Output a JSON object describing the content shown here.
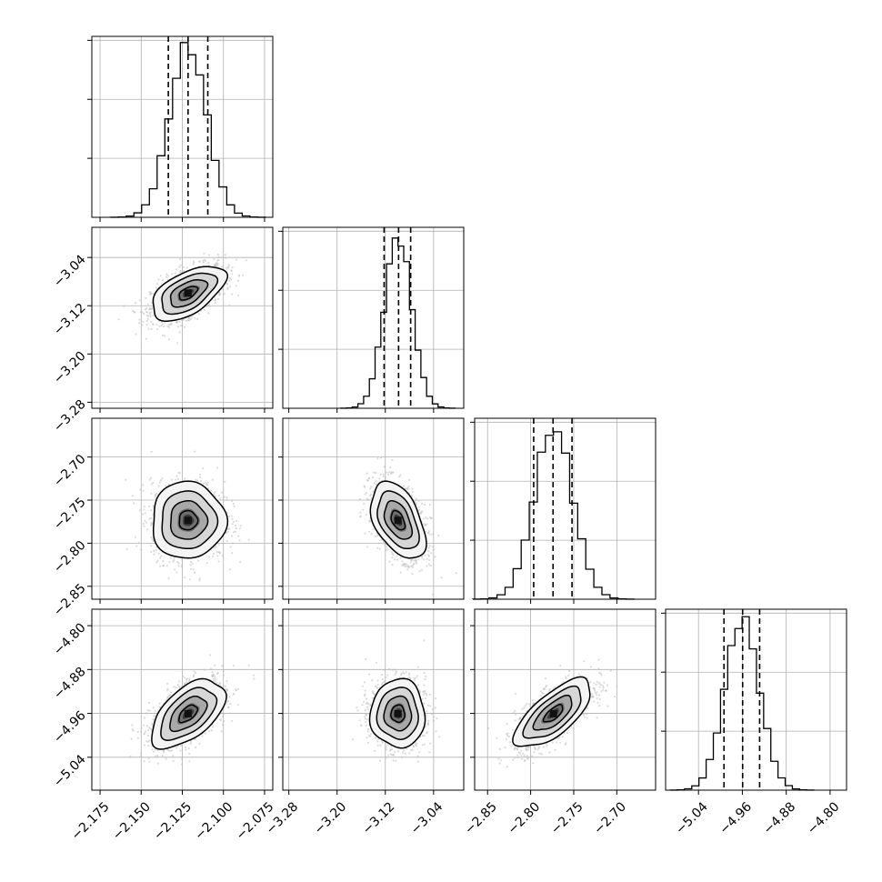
{
  "chart_data": {
    "type": "corner",
    "parameters": [
      {
        "range": [
          -2.18,
          -2.07
        ],
        "ticks": [
          {
            "value": -2.175,
            "label": "−2.175"
          },
          {
            "value": -2.15,
            "label": "−2.150"
          },
          {
            "value": -2.125,
            "label": "−2.125"
          },
          {
            "value": -2.1,
            "label": "−2.100"
          },
          {
            "value": -2.075,
            "label": "−2.075"
          }
        ],
        "quantiles": [
          -2.1335,
          -2.1215,
          -2.1095
        ],
        "mean": -2.1215,
        "sd": 0.0112,
        "hist_max": 0.138
      },
      {
        "range": [
          -3.29,
          -2.99
        ],
        "ticks": [
          {
            "value": -3.28,
            "label": "−3.28"
          },
          {
            "value": -3.2,
            "label": "−3.20"
          },
          {
            "value": -3.12,
            "label": "−3.12"
          },
          {
            "value": -3.04,
            "label": "−3.04"
          }
        ],
        "quantiles": [
          -3.122,
          -3.098,
          -3.078
        ],
        "mean": -3.099,
        "sd": 0.0226,
        "hist_max": 0.138
      },
      {
        "range": [
          -2.865,
          -2.655
        ],
        "ticks": [
          {
            "value": -2.85,
            "label": "−2.85"
          },
          {
            "value": -2.8,
            "label": "−2.80"
          },
          {
            "value": -2.75,
            "label": "−2.75"
          },
          {
            "value": -2.7,
            "label": "−2.70"
          }
        ],
        "quantiles": [
          -2.7965,
          -2.774,
          -2.752
        ],
        "mean": -2.7735,
        "sd": 0.0223,
        "hist_max": 0.138
      },
      {
        "range": [
          -5.1,
          -4.77
        ],
        "ticks": [
          {
            "value": -5.04,
            "label": "−5.04"
          },
          {
            "value": -4.96,
            "label": "−4.96"
          },
          {
            "value": -4.88,
            "label": "−4.88"
          },
          {
            "value": -4.8,
            "label": "−4.80"
          }
        ],
        "quantiles": [
          -4.9935,
          -4.9595,
          -4.9285
        ],
        "mean": -4.9605,
        "sd": 0.0312,
        "hist_max": 0.138
      }
    ],
    "correlations": [
      {
        "row": 1,
        "col": 0,
        "rho": 0.55
      },
      {
        "row": 2,
        "col": 0,
        "rho": 0.0
      },
      {
        "row": 2,
        "col": 1,
        "rho": -0.45
      },
      {
        "row": 3,
        "col": 0,
        "rho": 0.55
      },
      {
        "row": 3,
        "col": 1,
        "rho": 0.0
      },
      {
        "row": 3,
        "col": 2,
        "rho": 0.7
      }
    ],
    "contour_levels_sigma": [
      0.5,
      1.0,
      1.5,
      2.0
    ],
    "bins": 20,
    "grid": true,
    "colors": {
      "line": "#000000",
      "point": "#bdbdbd",
      "grid": "#b0b0b0"
    }
  }
}
